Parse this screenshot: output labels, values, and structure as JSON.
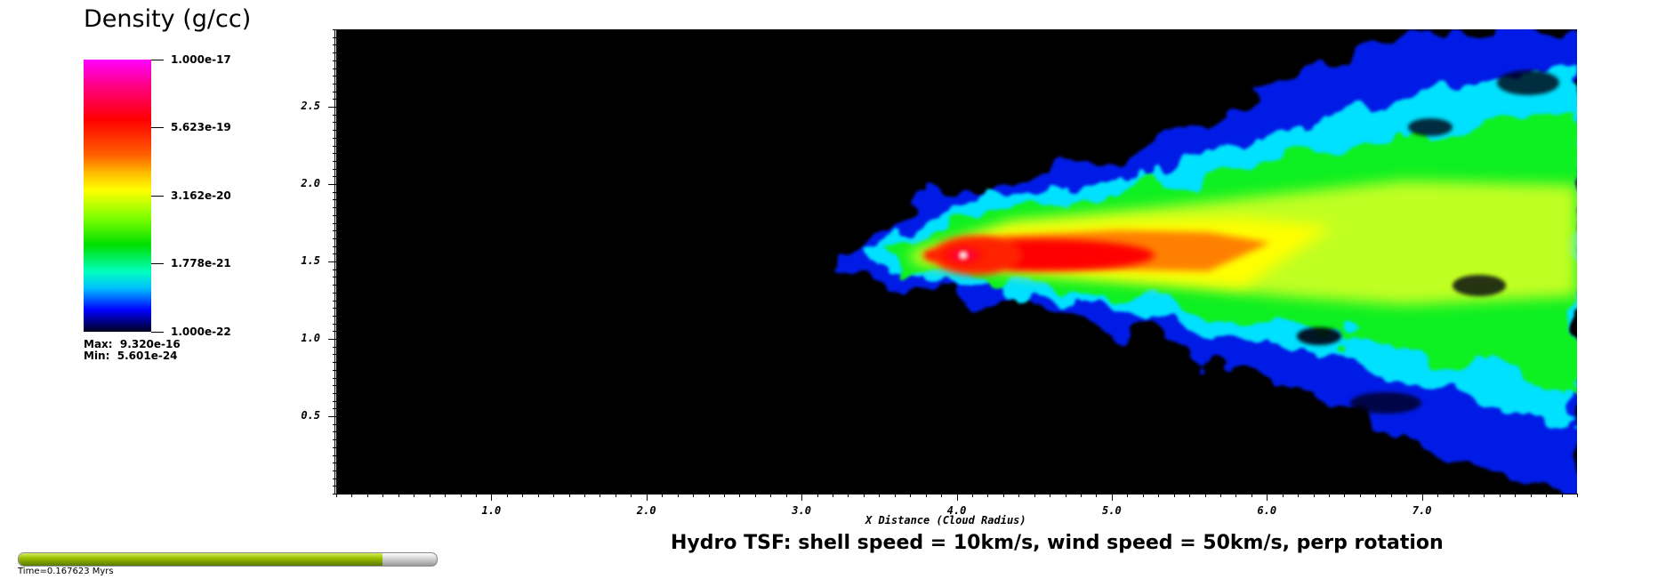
{
  "legend": {
    "title": "Density (g/cc)",
    "ticks": [
      "1.000e-17",
      "5.623e-19",
      "3.162e-20",
      "1.778e-21",
      "1.000e-22"
    ],
    "max_text": "Max:  9.320e-16",
    "min_text": "Min:  5.601e-24"
  },
  "plot": {
    "title": "Hydro TSF: shell speed = 10km/s, wind speed = 50km/s, perp rotation",
    "xlabel": "X Distance (Cloud Radius)",
    "ylabel": "",
    "x_ticks": [
      "1.0",
      "2.0",
      "3.0",
      "4.0",
      "5.0",
      "6.0",
      "7.0"
    ],
    "y_ticks": [
      "2.5",
      "2.0",
      "1.5",
      "1.0",
      "0.5"
    ]
  },
  "time": {
    "label": "Time=0.167623 Myrs",
    "progress": 0.87
  },
  "chart_data": {
    "type": "heatmap",
    "title": "Hydro TSF: shell speed = 10km/s, wind speed = 50km/s, perp rotation",
    "xlabel": "X Distance (Cloud Radius)",
    "ylabel": "",
    "xlim": [
      0,
      8
    ],
    "ylim": [
      0,
      3
    ],
    "x_tick_labels": [
      "1.0",
      "2.0",
      "3.0",
      "4.0",
      "5.0",
      "6.0",
      "7.0"
    ],
    "y_tick_labels": [
      "0.5",
      "1.0",
      "1.5",
      "2.0",
      "2.5"
    ],
    "colorbar": {
      "label": "Density (g/cc)",
      "scale": "log",
      "range": [
        1e-22,
        1e-17
      ],
      "ticks": [
        "1.000e-22",
        "1.778e-21",
        "3.162e-20",
        "5.623e-19",
        "1.000e-17"
      ]
    },
    "max": "9.320e-16",
    "min": "5.601e-24",
    "time": "0.167623 Myrs",
    "colors": {
      "background": "#000000",
      "core": "#ff0000",
      "mid": "#ffff00",
      "outer": "#00ff00",
      "edge": "#0000ff"
    }
  }
}
